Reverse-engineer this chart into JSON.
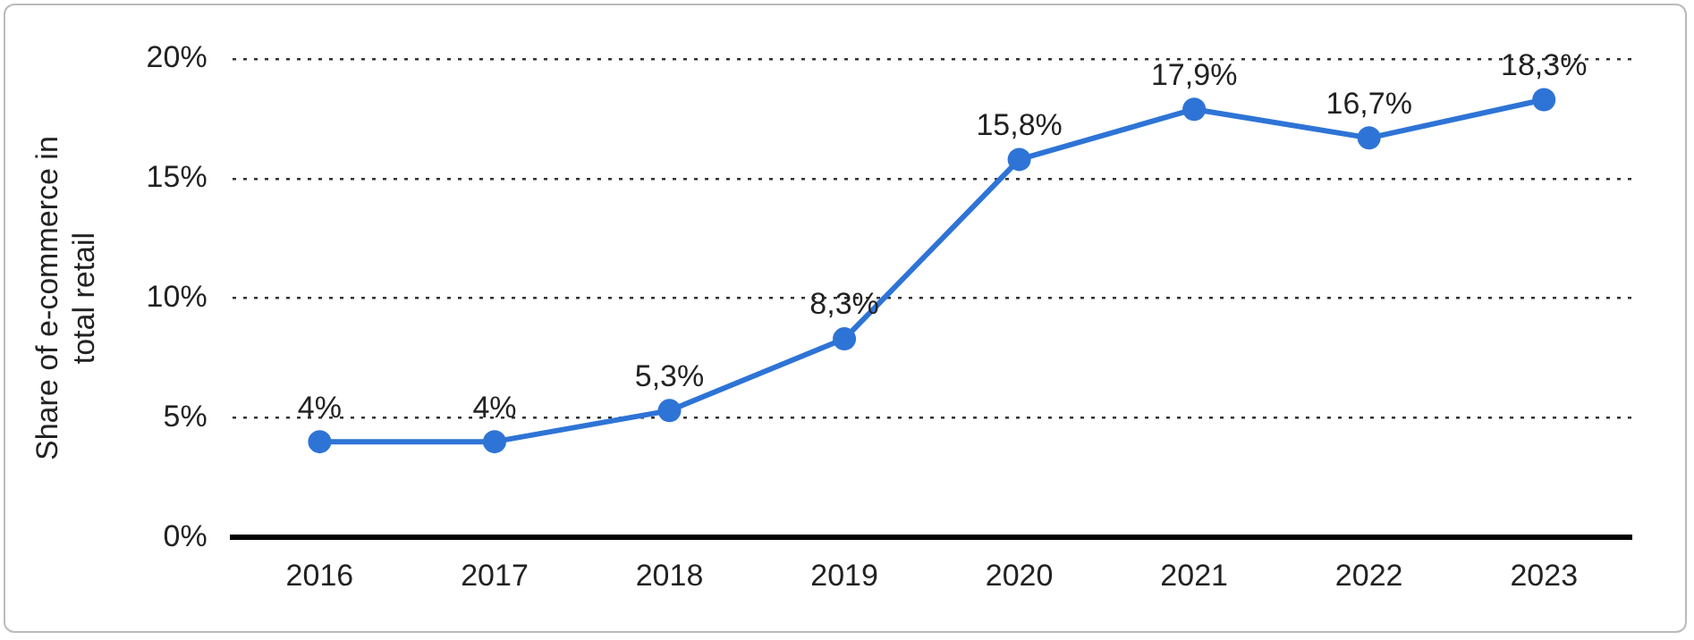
{
  "chart_data": {
    "type": "line",
    "ylabel": "Share of e-commerce in total retail",
    "categories": [
      "2016",
      "2017",
      "2018",
      "2019",
      "2020",
      "2021",
      "2022",
      "2023"
    ],
    "series": [
      {
        "color": "#2e74d6",
        "values": [
          4,
          4,
          5.3,
          8.3,
          15.8,
          17.9,
          16.7,
          18.3
        ],
        "value_labels": [
          "4%",
          "4%",
          "5,3%",
          "8,3%",
          "15,8%",
          "17,9%",
          "16,7%",
          "18,3%"
        ]
      }
    ],
    "ylim": [
      0,
      20
    ],
    "yticks": [
      {
        "value": 0,
        "label": "0%"
      },
      {
        "value": 5,
        "label": "5%"
      },
      {
        "value": 10,
        "label": "10%"
      },
      {
        "value": 15,
        "label": "15%"
      },
      {
        "value": 20,
        "label": "20%"
      }
    ],
    "grid": "y",
    "legend": false,
    "marker": "circle",
    "line_style": "solid"
  }
}
